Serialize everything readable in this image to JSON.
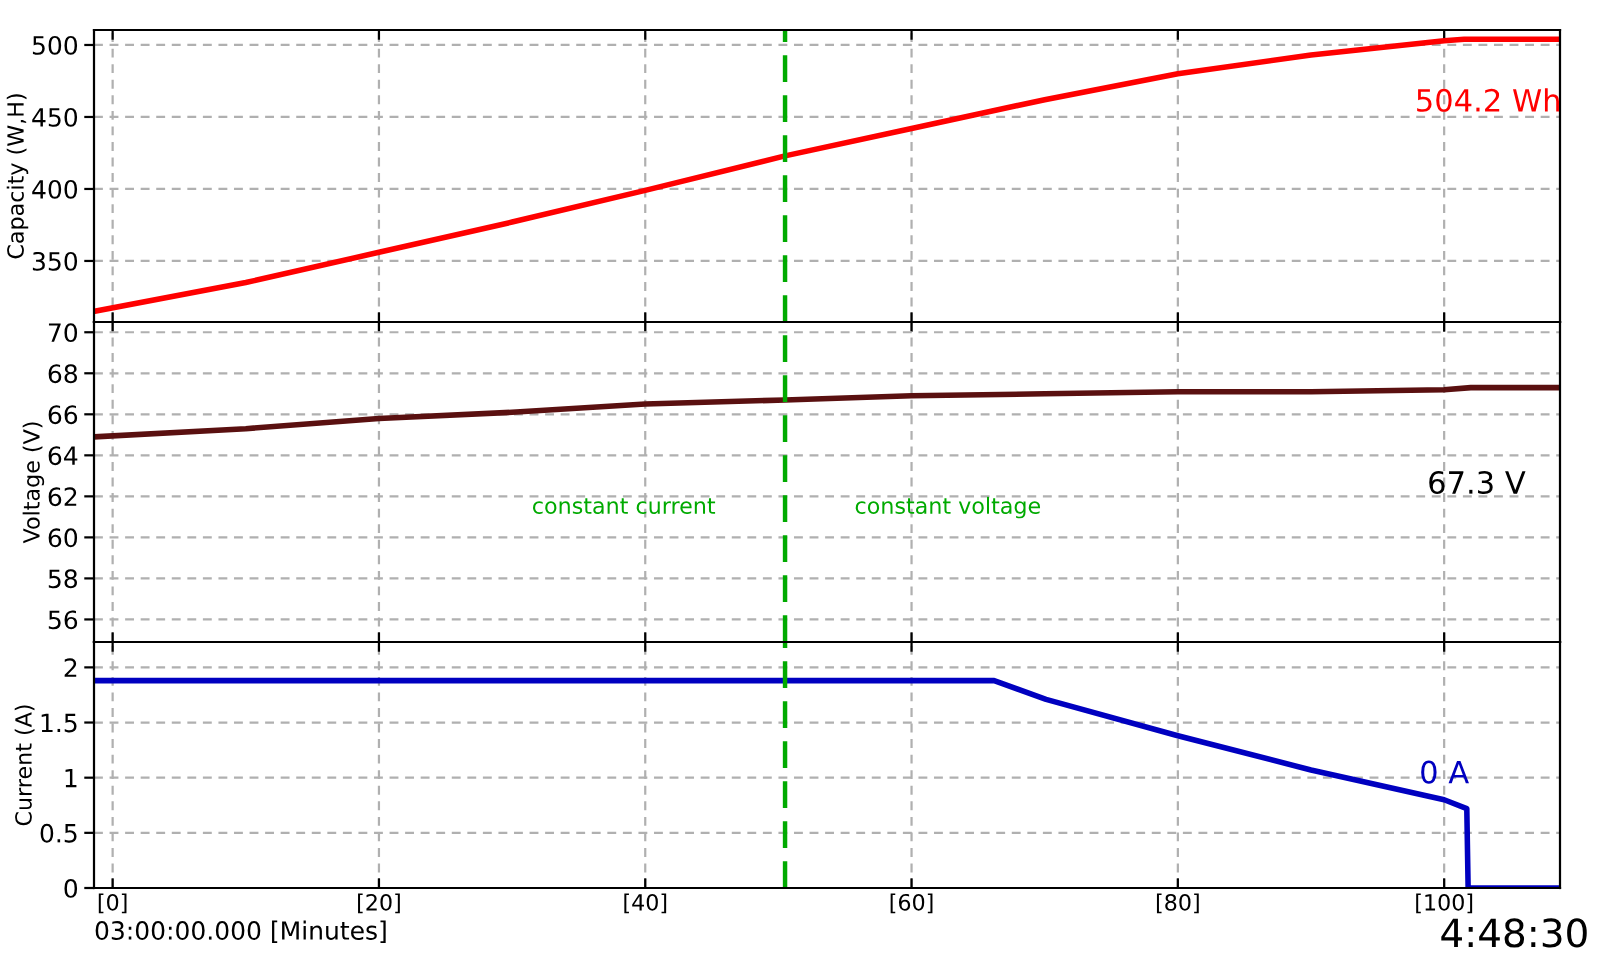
{
  "chart_data": [
    {
      "type": "line",
      "ylabel": "Capacity (W,H)",
      "x": [
        -1.4,
        10,
        20,
        30,
        40,
        50.5,
        60,
        70,
        80,
        90,
        100,
        101.5,
        108.7
      ],
      "series": [
        {
          "color": "#ff0000",
          "values": [
            315,
            335,
            356,
            377,
            399,
            423,
            442,
            462,
            480,
            493,
            503,
            504,
            504
          ]
        }
      ],
      "xlim": [
        -1.4,
        108.7
      ],
      "xticks": [
        0,
        20,
        40,
        60,
        80,
        100
      ],
      "ylim": [
        307.6,
        510.4
      ],
      "yticks": [
        350,
        400,
        450,
        500
      ],
      "grid": true,
      "tick_labels": "y",
      "line_style": "solid",
      "ref_lines": [
        {
          "axis": "x",
          "value": 50.5,
          "color": "#00aa00",
          "line_style": "dashed"
        }
      ],
      "annotations": [
        "504.2 Wh"
      ]
    },
    {
      "type": "line",
      "ylabel": "Voltage (V)",
      "x": [
        -1.4,
        10,
        20,
        30,
        40,
        50.5,
        60,
        70,
        80,
        90,
        100,
        102,
        108.7
      ],
      "series": [
        {
          "color": "#5a1010",
          "values": [
            64.9,
            65.3,
            65.8,
            66.1,
            66.5,
            66.7,
            66.9,
            67.0,
            67.1,
            67.1,
            67.2,
            67.3,
            67.3
          ]
        }
      ],
      "xlim": [
        -1.4,
        108.7
      ],
      "xticks": [
        0,
        20,
        40,
        60,
        80,
        100
      ],
      "ylim": [
        54.9,
        70.5
      ],
      "yticks": [
        56,
        58,
        60,
        62,
        64,
        66,
        68,
        70
      ],
      "grid": true,
      "tick_labels": "y",
      "line_style": "solid",
      "ref_lines": [
        {
          "axis": "x",
          "value": 50.5,
          "color": "#00aa00",
          "line_style": "dashed"
        }
      ],
      "annotations": [
        "constant current",
        "constant voltage",
        "67.3 V"
      ]
    },
    {
      "type": "line",
      "ylabel": "Current (A)",
      "xlabel": "03:00:00.000 [Minutes]",
      "x": [
        -1.4,
        66.2,
        70.1,
        80,
        90,
        100,
        101.7,
        101.8,
        108.7
      ],
      "series": [
        {
          "color": "#0000c0",
          "values": [
            1.88,
            1.88,
            1.71,
            1.38,
            1.07,
            0.8,
            0.72,
            0,
            0
          ]
        }
      ],
      "xlim": [
        -1.4,
        108.7
      ],
      "xticks": [
        {
          "value": 0,
          "label": "[0]"
        },
        {
          "value": 20,
          "label": "[20]"
        },
        {
          "value": 40,
          "label": "[40]"
        },
        {
          "value": 60,
          "label": "[60]"
        },
        {
          "value": 80,
          "label": "[80]"
        },
        {
          "value": 100,
          "label": "[100]"
        }
      ],
      "ylim": [
        0,
        2.23
      ],
      "yticks": [
        0,
        0.5,
        1,
        1.5,
        2
      ],
      "grid": true,
      "line_style": "solid",
      "ref_lines": [
        {
          "axis": "x",
          "value": 50.5,
          "color": "#00aa00",
          "line_style": "dashed"
        }
      ],
      "annotations": [
        "0 A",
        "4:48:30"
      ]
    }
  ]
}
